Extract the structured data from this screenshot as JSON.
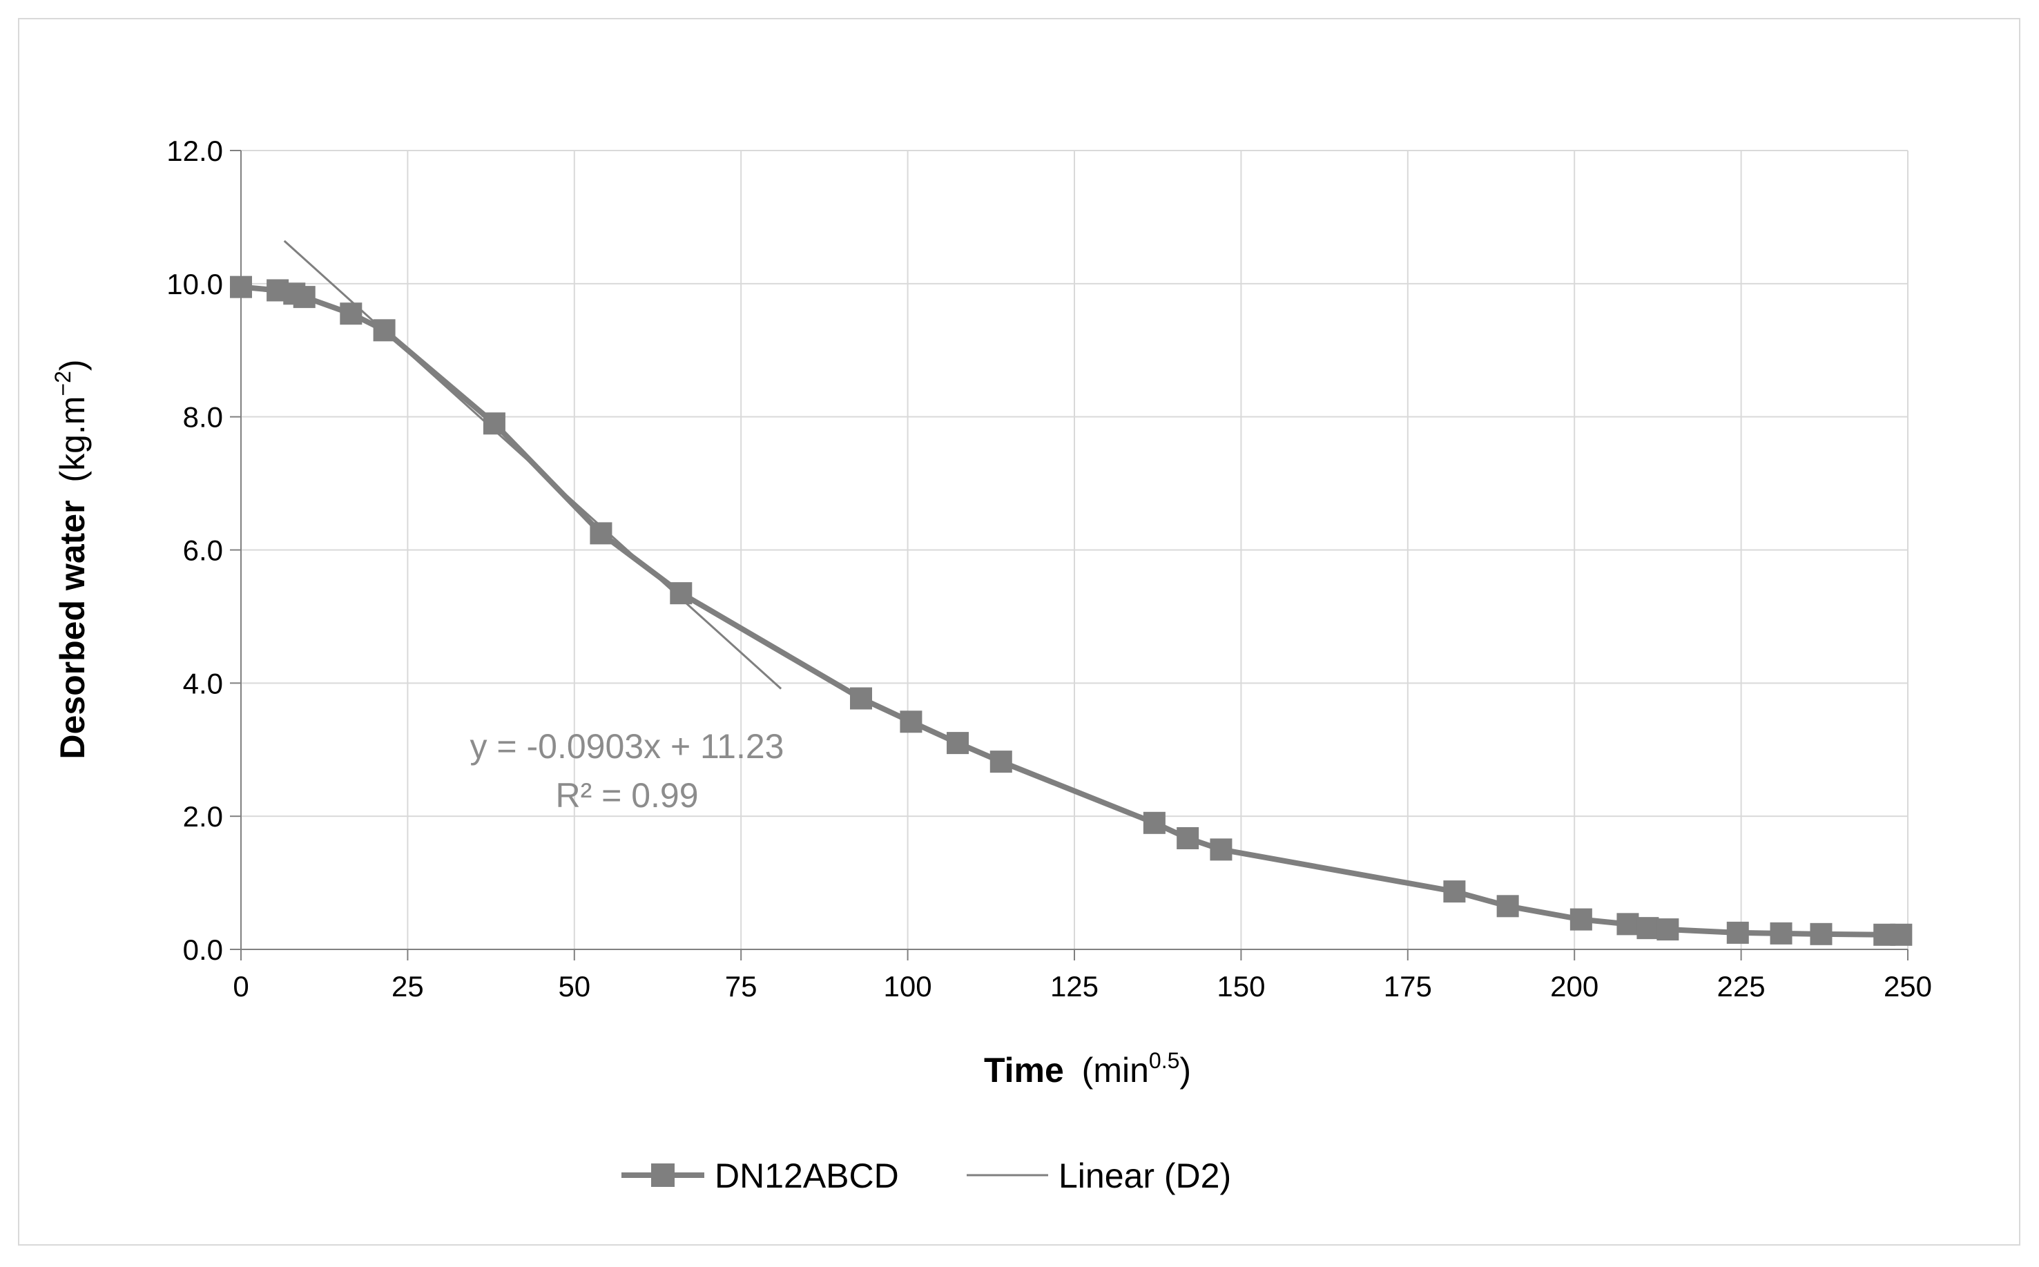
{
  "chart_data": {
    "type": "line",
    "title": "",
    "xlabel_bold": "Time",
    "xlabel_rest": "(min",
    "xlabel_sup": "0.5",
    "xlabel_close": ")",
    "ylabel_bold": "Desorbed water",
    "ylabel_rest": "(kg.m",
    "ylabel_sup": "−2",
    "ylabel_close": ")",
    "xlim": [
      0,
      250
    ],
    "ylim": [
      0,
      12
    ],
    "xticks": [
      0,
      25,
      50,
      75,
      100,
      125,
      150,
      175,
      200,
      225,
      250
    ],
    "xtick_labels": [
      "0",
      "25",
      "50",
      "75",
      "100",
      "125",
      "150",
      "175",
      "200",
      "225",
      "250"
    ],
    "yticks": [
      0,
      2,
      4,
      6,
      8,
      10,
      12
    ],
    "ytick_labels": [
      "0.0",
      "2.0",
      "4.0",
      "6.0",
      "8.0",
      "10.0",
      "12.0"
    ],
    "grid": true,
    "legend_position": "bottom-center",
    "series": [
      {
        "name": "DN12ABCD",
        "marker": "square",
        "color": "#7f7f7f",
        "x": [
          0,
          5.5,
          8,
          9.5,
          16.5,
          21.5,
          38,
          54,
          66,
          93,
          100.5,
          107.5,
          114,
          137,
          142,
          147,
          182,
          190,
          201,
          208,
          211,
          214,
          224.5,
          231,
          237,
          246.5,
          249
        ],
        "y": [
          9.95,
          9.9,
          9.85,
          9.8,
          9.55,
          9.3,
          7.9,
          6.25,
          5.35,
          3.77,
          3.42,
          3.1,
          2.82,
          1.9,
          1.67,
          1.5,
          0.87,
          0.65,
          0.45,
          0.38,
          0.32,
          0.3,
          0.25,
          0.24,
          0.23,
          0.22,
          0.22
        ]
      }
    ],
    "trendline": {
      "name": "Linear (D2)",
      "color": "#7f7f7f",
      "slope": -0.0903,
      "intercept": 11.23,
      "x_start": 6.5,
      "x_end": 81,
      "equation": "y = -0.0903x + 11.23",
      "r_squared": "R² = 0.99"
    }
  }
}
